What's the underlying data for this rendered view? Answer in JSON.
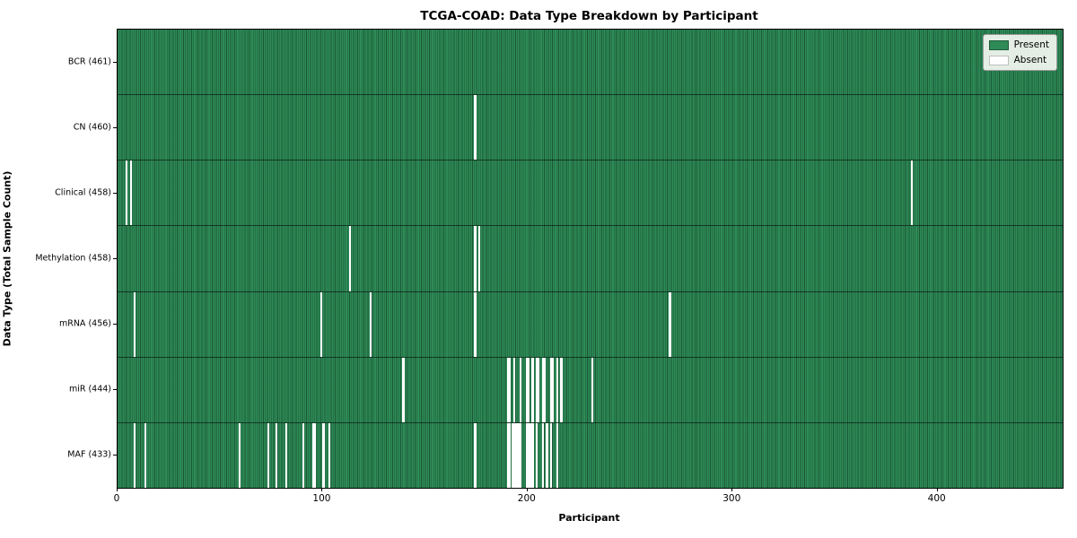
{
  "title": "TCGA-COAD: Data Type Breakdown by Participant",
  "axes": {
    "xlabel": "Participant",
    "ylabel": "Data Type (Total Sample Count)",
    "x_ticks": [
      0,
      100,
      200,
      300,
      400
    ]
  },
  "legend": {
    "present_label": "Present",
    "absent_label": "Absent"
  },
  "colors": {
    "present": "#2e8b57",
    "absent": "#ffffff",
    "bar_edge": "rgba(8,36,22,0.5)",
    "row_divider": "rgba(0,0,0,0.55)",
    "legend_bg": "rgba(244,247,242,0.92)"
  },
  "chart_data": {
    "type": "heatmap",
    "title": "TCGA-COAD: Data Type Breakdown by Participant",
    "xlabel": "Participant",
    "ylabel": "Data Type (Total Sample Count)",
    "xlim": [
      0,
      461
    ],
    "n_participants": 461,
    "grid": false,
    "legend_position": "upper right",
    "legend_entries": [
      "Present",
      "Absent"
    ],
    "value_encoding": {
      "present": 1,
      "absent": 0
    },
    "rows": [
      {
        "name": "BCR",
        "label": "BCR (461)",
        "present_count": 461,
        "absent_participants": []
      },
      {
        "name": "CN",
        "label": "CN (460)",
        "present_count": 460,
        "absent_participants": [
          174
        ]
      },
      {
        "name": "Clinical",
        "label": "Clinical (458)",
        "present_count": 458,
        "absent_participants": [
          4,
          6,
          387
        ]
      },
      {
        "name": "Methylation",
        "label": "Methylation (458)",
        "present_count": 458,
        "absent_participants": [
          113,
          174,
          176
        ]
      },
      {
        "name": "mRNA",
        "label": "mRNA (456)",
        "present_count": 456,
        "absent_participants": [
          8,
          99,
          123,
          174,
          269
        ]
      },
      {
        "name": "miR",
        "label": "miR (444)",
        "present_count": 444,
        "absent_participants": [
          139,
          190,
          191,
          193,
          196,
          199,
          200,
          202,
          204,
          205,
          207,
          208,
          211,
          212,
          214,
          216,
          231
        ]
      },
      {
        "name": "MAF",
        "label": "MAF (433)",
        "present_count": 433,
        "absent_participants": [
          8,
          13,
          59,
          73,
          77,
          82,
          90,
          95,
          96,
          100,
          103,
          174,
          190,
          191,
          192,
          193,
          194,
          195,
          196,
          199,
          200,
          201,
          202,
          204,
          207,
          209,
          211,
          214
        ]
      }
    ]
  }
}
